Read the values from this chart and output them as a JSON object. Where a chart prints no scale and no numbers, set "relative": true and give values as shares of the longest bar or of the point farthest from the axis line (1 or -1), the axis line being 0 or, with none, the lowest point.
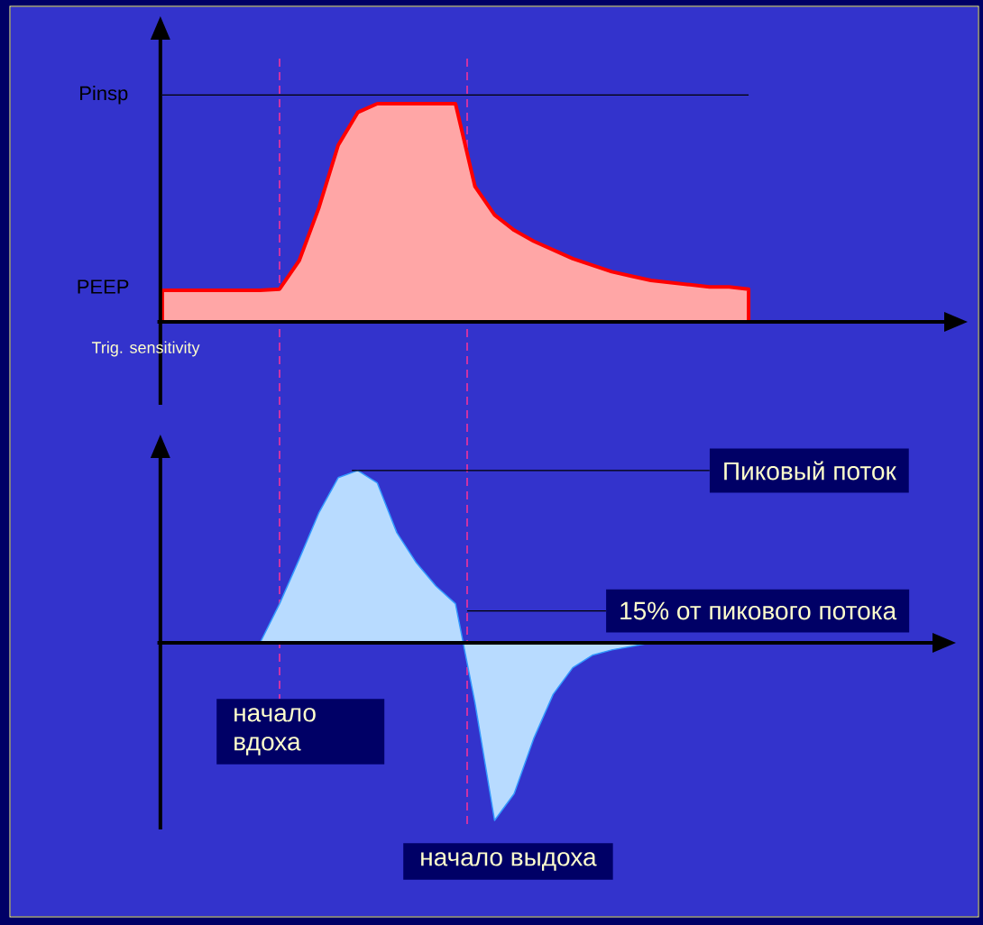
{
  "chart_data": [
    {
      "type": "area",
      "relative": true,
      "categories": [
        null,
        null,
        null,
        null,
        null,
        null,
        null,
        null,
        null,
        null,
        null,
        null,
        null,
        null,
        null,
        null,
        null,
        null,
        null,
        null,
        null,
        null,
        null,
        null,
        null,
        null,
        null,
        null,
        null,
        null,
        null
      ],
      "series": [
        {
          "color": "#ff0000",
          "values": [
            0.145,
            0.145,
            0.145,
            0.145,
            0.145,
            0.145,
            0.15,
            0.28,
            0.52,
            0.81,
            0.96,
            1,
            1,
            1,
            1,
            1,
            0.62,
            0.49,
            0.42,
            0.37,
            0.33,
            0.29,
            0.26,
            0.23,
            0.21,
            0.19,
            0.18,
            0.17,
            0.16,
            0.16,
            0.15
          ]
        }
      ],
      "ref_lines": [
        {
          "axis": "y",
          "value": 1.04,
          "label": "Pinsp",
          "color": "#000000"
        }
      ],
      "annotations": [
        "PEEP",
        "Trig. sensitivity"
      ]
    },
    {
      "type": "area",
      "relative": true,
      "categories": [
        null,
        null,
        null,
        null,
        null,
        null,
        null,
        null,
        null,
        null,
        null,
        null,
        null,
        null,
        null,
        null,
        null,
        null,
        null,
        null,
        null,
        null,
        null,
        null,
        null,
        null,
        null,
        null,
        null,
        null,
        null,
        null,
        null,
        null,
        null,
        null
      ],
      "series": [
        {
          "color": "#3399ff",
          "values": [
            0,
            0,
            0,
            0,
            0,
            0,
            0.22,
            0.47,
            0.73,
            0.93,
            0.97,
            0.9,
            0.62,
            0.45,
            0.32,
            0.22,
            -0.34,
            -1,
            -0.85,
            -0.54,
            -0.29,
            -0.14,
            -0.07,
            -0.04,
            -0.02,
            0,
            0,
            0,
            0,
            0,
            0,
            0,
            0,
            0,
            0,
            0
          ]
        }
      ],
      "ref_lines": [
        {
          "axis": "y",
          "value": 0.97,
          "label": "Пиковый поток",
          "color": "#000000"
        },
        {
          "axis": "y",
          "value": 0.18,
          "label": "15% от пикового потока",
          "color": "#000000"
        }
      ],
      "annotations": [
        "начало вдоха",
        "начало выдоха"
      ]
    }
  ]
}
